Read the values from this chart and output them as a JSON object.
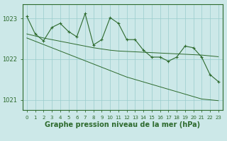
{
  "x": [
    0,
    1,
    2,
    3,
    4,
    5,
    6,
    7,
    8,
    9,
    10,
    11,
    12,
    13,
    14,
    15,
    16,
    17,
    18,
    19,
    20,
    21,
    22,
    23
  ],
  "y_main": [
    1023.05,
    1022.62,
    1022.45,
    1022.78,
    1022.88,
    1022.68,
    1022.55,
    1023.12,
    1022.35,
    1022.48,
    1023.02,
    1022.88,
    1022.48,
    1022.48,
    1022.22,
    1022.05,
    1022.05,
    1021.95,
    1022.05,
    1022.32,
    1022.28,
    1022.05,
    1021.62,
    1021.45
  ],
  "y_trend1": [
    1022.62,
    1022.57,
    1022.52,
    1022.48,
    1022.44,
    1022.4,
    1022.36,
    1022.32,
    1022.28,
    1022.25,
    1022.22,
    1022.2,
    1022.19,
    1022.18,
    1022.17,
    1022.16,
    1022.15,
    1022.14,
    1022.13,
    1022.12,
    1022.11,
    1022.1,
    1022.08,
    1022.06
  ],
  "y_trend2": [
    1022.52,
    1022.44,
    1022.36,
    1022.28,
    1022.2,
    1022.12,
    1022.04,
    1021.96,
    1021.88,
    1021.8,
    1021.72,
    1021.64,
    1021.56,
    1021.5,
    1021.44,
    1021.38,
    1021.32,
    1021.26,
    1021.2,
    1021.14,
    1021.08,
    1021.02,
    1021.0,
    1020.98
  ],
  "line_color": "#2d6a2d",
  "bg_color": "#cce8e8",
  "grid_color": "#99cccc",
  "xlabel": "Graphe pression niveau de la mer (hPa)",
  "ylim": [
    1020.75,
    1023.35
  ],
  "yticks": [
    1021,
    1022,
    1023
  ],
  "xlabel_fontsize": 7,
  "tick_fontsize": 5
}
